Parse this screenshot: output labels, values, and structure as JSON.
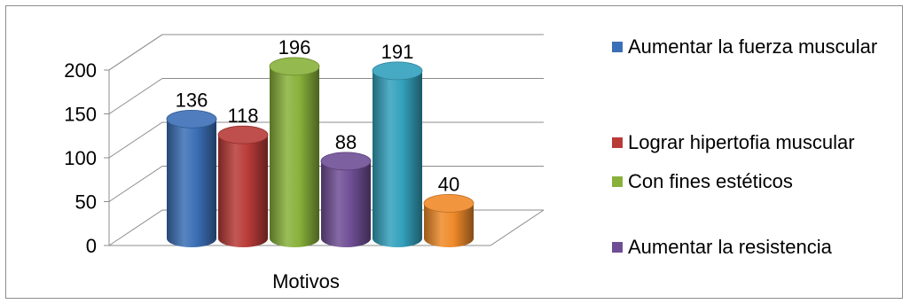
{
  "chart_data": {
    "type": "bar",
    "categories": [
      "Motivos"
    ],
    "series": [
      {
        "name": "Aumentar la fuerza muscular",
        "value": 136,
        "color": "#3b6fb6"
      },
      {
        "name": "Lograr hipertofia muscular",
        "value": 118,
        "color": "#b83b38"
      },
      {
        "name": "Con fines estéticos",
        "value": 196,
        "color": "#88b13b"
      },
      {
        "name": "Aumentar la resistencia",
        "value": 88,
        "color": "#6f4e95"
      },
      {
        "name": "",
        "value": 191,
        "color": "#33a1bd"
      },
      {
        "name": "",
        "value": 40,
        "color": "#ef8a2a"
      }
    ],
    "xlabel": "Motivos",
    "ylim": [
      0,
      200
    ],
    "yticks": [
      0,
      50,
      100,
      150,
      200
    ],
    "grid": true,
    "legend": "right",
    "legend_visible_entries": 4,
    "style": "3d-cylinder"
  }
}
